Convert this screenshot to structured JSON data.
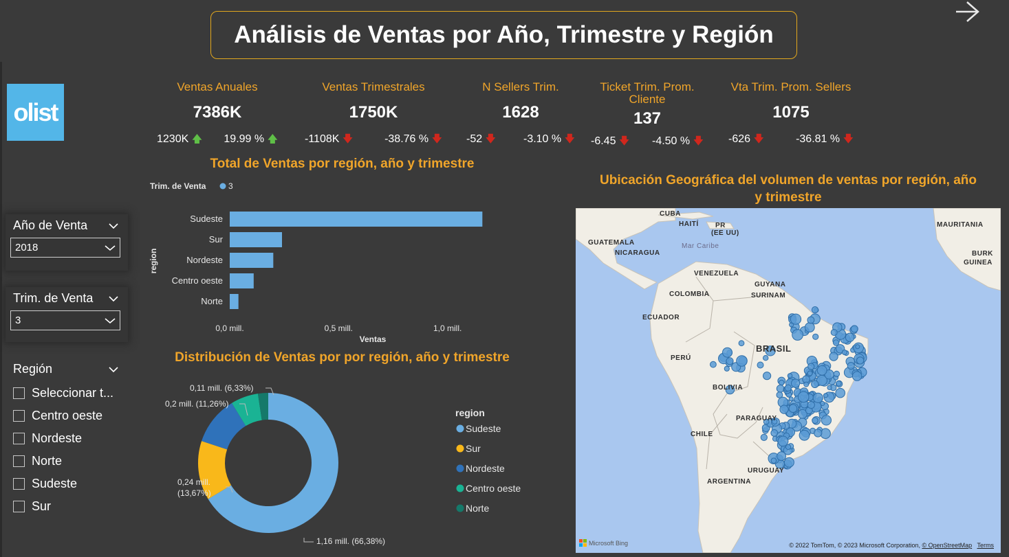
{
  "page": {
    "title": "Análisis de Ventas por Año, Trimestre y Región",
    "logo_text": "olist"
  },
  "kpis": [
    {
      "label": "Ventas Anuales",
      "value": "7386K",
      "delta1": "1230K",
      "delta1_dir": "up",
      "delta2": "19.99 %",
      "delta2_dir": "up"
    },
    {
      "label": "Ventas Trimestrales",
      "value": "1750K",
      "delta1": "-1108K",
      "delta1_dir": "down",
      "delta2": "-38.76 %",
      "delta2_dir": "down"
    },
    {
      "label": "N Sellers Trim.",
      "value": "1628",
      "delta1": "-52",
      "delta1_dir": "down",
      "delta2": "-3.10 %",
      "delta2_dir": "down"
    },
    {
      "label": "Ticket Trim. Prom. Cliente",
      "value": "137",
      "delta1": "-6.45",
      "delta1_dir": "down",
      "delta2": "-4.50 %",
      "delta2_dir": "down"
    },
    {
      "label": "Vta Trim. Prom. Sellers",
      "value": "1075",
      "delta1": "-626",
      "delta1_dir": "down",
      "delta2": "-36.81 %",
      "delta2_dir": "down"
    }
  ],
  "filters": {
    "year": {
      "label": "Año de Venta",
      "value": "2018"
    },
    "quarter": {
      "label": "Trim. de Venta",
      "value": "3"
    },
    "region": {
      "label": "Región",
      "options": [
        "Seleccionar t...",
        "Centro oeste",
        "Nordeste",
        "Norte",
        "Sudeste",
        "Sur"
      ]
    }
  },
  "colors": {
    "accent": "#f0a52a",
    "up": "#5fbf47",
    "down": "#d0271d",
    "bar": "#6aaee2",
    "map_bubble": "#5b9bd5"
  },
  "bar_section": {
    "title": "Total de Ventas por región, año y trimestre"
  },
  "donut_section": {
    "title": "Distribución de Ventas por por región, año y trimestre"
  },
  "map_section": {
    "title_line1": "Ubicación Geográfica del volumen de ventas por región, año",
    "title_line2": "y trimestre",
    "labels": [
      "CUBA",
      "HAITÍ",
      "PR",
      "(EE UU)",
      "GUATEMALA",
      "NICARAGUA",
      "Mar Caribe",
      "VENEZUELA",
      "GUYANA",
      "SURINAM",
      "COLOMBIA",
      "ECUADOR",
      "PERÚ",
      "BRASIL",
      "BOLIVIA",
      "PARAGUAY",
      "CHILE",
      "URUGUAY",
      "ARGENTINA",
      "MAURITANIA",
      "GUINEA",
      "BURK"
    ],
    "brand": "Microsoft Bing",
    "attribution": "© 2022 TomTom, © 2023 Microsoft Corporation,",
    "osm": "© OpenStreetMap",
    "terms": "Terms"
  },
  "chart_data": [
    {
      "type": "bar",
      "orientation": "horizontal",
      "title": "Total de Ventas por región, año y trimestre",
      "legend_title": "Trim. de Venta",
      "legend": [
        "3"
      ],
      "ylabel": "region",
      "xlabel": "Ventas",
      "categories": [
        "Sudeste",
        "Sur",
        "Nordeste",
        "Centro oeste",
        "Norte"
      ],
      "values": [
        1160000,
        240000,
        200000,
        110000,
        40000
      ],
      "xticks": [
        "0,0 mill.",
        "0,5 mill.",
        "1,0 mill."
      ],
      "xlim": [
        0,
        1200000
      ]
    },
    {
      "type": "pie",
      "donut": true,
      "title": "Distribución de Ventas por por región, año y trimestre",
      "legend_title": "region",
      "categories": [
        "Sudeste",
        "Sur",
        "Nordeste",
        "Centro oeste",
        "Norte"
      ],
      "values": [
        66.38,
        13.67,
        11.26,
        6.33,
        2.36
      ],
      "colors": [
        "#6aaee2",
        "#f9b81a",
        "#2f72ba",
        "#1ab394",
        "#15796a"
      ],
      "data_labels": [
        "1,16 mill. (66,38%)",
        "0,24 mill. (13,67%)",
        "0,2 mill. (11,26%)",
        "0,11 mill. (6,33%)",
        ""
      ]
    }
  ]
}
